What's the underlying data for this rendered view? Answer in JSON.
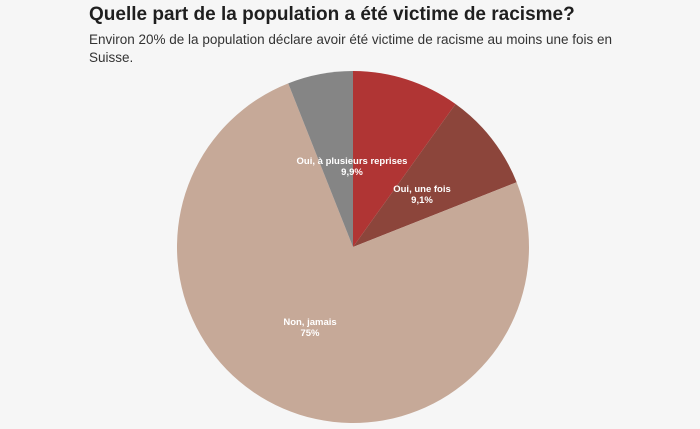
{
  "header": {
    "title": "Quelle part de la population a été victime de racisme?",
    "subtitle": "Environ 20% de la population déclare avoir été victime de racisme au moins une fois en Suisse."
  },
  "chart_data": {
    "type": "pie",
    "title": "Quelle part de la population a été victime de racisme?",
    "subtitle": "Environ 20% de la population déclare avoir été victime de racisme au moins une fois en Suisse.",
    "start_angle_deg": 0,
    "direction": "clockwise",
    "slices": [
      {
        "label": "Oui, à plusieurs reprises",
        "value": 9.9,
        "value_label": "9,9%",
        "color": "#b03534",
        "show_label": true
      },
      {
        "label": "Oui, une fois",
        "value": 9.1,
        "value_label": "9,1%",
        "color": "#8c453b",
        "show_label": true
      },
      {
        "label": "Non, jamais",
        "value": 75,
        "value_label": "75%",
        "color": "#c6a998",
        "show_label": true
      },
      {
        "label": "",
        "value": 6.0,
        "value_label": "",
        "color": "#858585",
        "show_label": false
      }
    ],
    "legend": "none"
  }
}
